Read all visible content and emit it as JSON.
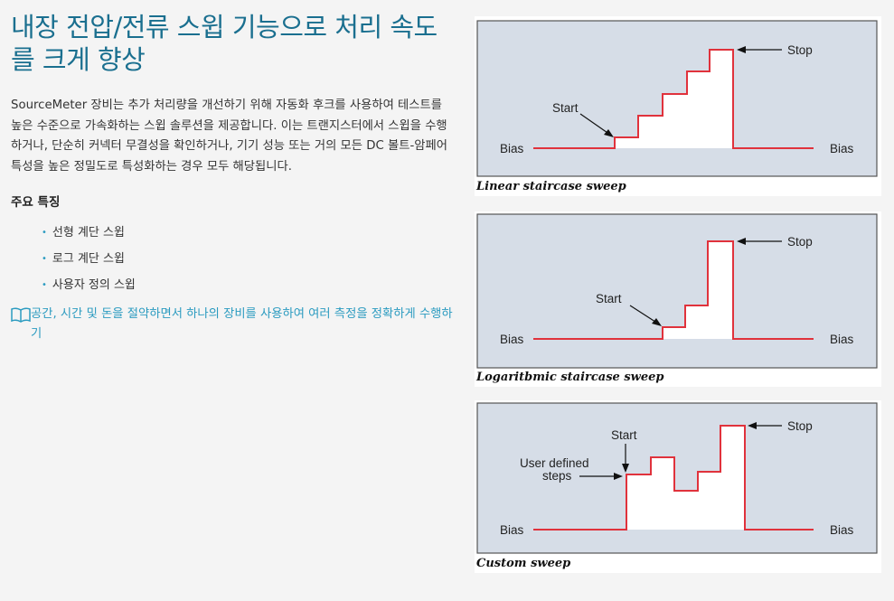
{
  "heading": {
    "title": "내장 전압/전류 스윕 기능으로 처리 속도를 크게 향상"
  },
  "description": "SourceMeter 장비는 추가 처리량을 개선하기 위해 자동화 후크를 사용하여 테스트를 높은 수준으로 가속화하는 스윕 솔루션을 제공합니다. 이는 트랜지스터에서 스윕을 수행하거나, 단순히 커넥터 무결성을 확인하거나, 기기 성능 또는 거의 모든 DC 볼트-암페어 특성을 높은 정밀도로 특성화하는 경우 모두 해당됩니다.",
  "features": {
    "heading": "주요 특징",
    "items": [
      "선형 계단 스윕",
      "로그 계단 스윕",
      "사용자 정의 스윕"
    ]
  },
  "link": {
    "icon": "book-icon",
    "text": "공간, 시간 및 돈을 절약하면서 하나의 장비를 사용하여 여러 측정을 정확하게 수행하기"
  },
  "diagrams": [
    {
      "caption": "Linear staircase sweep",
      "labels": {
        "start": "Start",
        "stop": "Stop",
        "bias_left": "Bias",
        "bias_right": "Bias"
      }
    },
    {
      "caption": "Logaritbmic staircase sweep",
      "labels": {
        "start": "Start",
        "stop": "Stop",
        "bias_left": "Bias",
        "bias_right": "Bias"
      }
    },
    {
      "caption": "Custom sweep",
      "labels": {
        "start": "Start",
        "stop": "Stop",
        "bias_left": "Bias",
        "bias_right": "Bias",
        "user_defined_line1": "User defined",
        "user_defined_line2": "steps"
      }
    }
  ],
  "colors": {
    "title": "#1a6f8f",
    "link": "#2b9bc0",
    "panel_bg": "#d6dde7",
    "trace": "#e0323c"
  }
}
